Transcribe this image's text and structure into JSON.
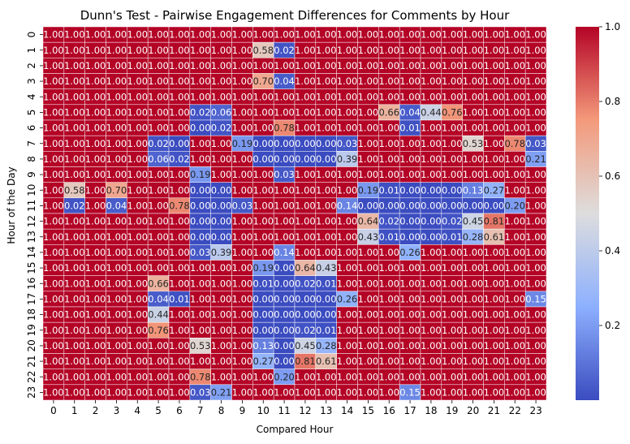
{
  "chart_data": {
    "type": "heatmap",
    "title": "Dunn's Test - Pairwise Engagement Differences for Comments by Hour",
    "xlabel": "Compared Hour",
    "ylabel": "Hour of the Day",
    "x_ticks": [
      "0",
      "1",
      "2",
      "3",
      "4",
      "5",
      "6",
      "7",
      "8",
      "9",
      "10",
      "11",
      "12",
      "13",
      "14",
      "15",
      "16",
      "17",
      "18",
      "19",
      "20",
      "21",
      "22",
      "23"
    ],
    "y_ticks": [
      "0",
      "1",
      "2",
      "3",
      "4",
      "5",
      "6",
      "7",
      "8",
      "9",
      "10",
      "11",
      "12",
      "13",
      "14",
      "15",
      "16",
      "17",
      "18",
      "19",
      "20",
      "21",
      "22",
      "23"
    ],
    "colorbar": {
      "ticks": [
        "0.2",
        "0.4",
        "0.6",
        "0.8",
        "1.0"
      ],
      "vmin": 0.0,
      "vmax": 1.0,
      "colormap": "coolwarm"
    },
    "values": [
      [
        1.0,
        1.0,
        1.0,
        1.0,
        1.0,
        1.0,
        1.0,
        1.0,
        1.0,
        1.0,
        1.0,
        1.0,
        1.0,
        1.0,
        1.0,
        1.0,
        1.0,
        1.0,
        1.0,
        1.0,
        1.0,
        1.0,
        1.0,
        1.0
      ],
      [
        1.0,
        1.0,
        1.0,
        1.0,
        1.0,
        1.0,
        1.0,
        1.0,
        1.0,
        1.0,
        0.58,
        0.02,
        1.0,
        1.0,
        1.0,
        1.0,
        1.0,
        1.0,
        1.0,
        1.0,
        1.0,
        1.0,
        1.0,
        1.0
      ],
      [
        1.0,
        1.0,
        1.0,
        1.0,
        1.0,
        1.0,
        1.0,
        1.0,
        1.0,
        1.0,
        1.0,
        1.0,
        1.0,
        1.0,
        1.0,
        1.0,
        1.0,
        1.0,
        1.0,
        1.0,
        1.0,
        1.0,
        1.0,
        1.0
      ],
      [
        1.0,
        1.0,
        1.0,
        1.0,
        1.0,
        1.0,
        1.0,
        1.0,
        1.0,
        1.0,
        0.7,
        0.04,
        1.0,
        1.0,
        1.0,
        1.0,
        1.0,
        1.0,
        1.0,
        1.0,
        1.0,
        1.0,
        1.0,
        1.0
      ],
      [
        1.0,
        1.0,
        1.0,
        1.0,
        1.0,
        1.0,
        1.0,
        1.0,
        1.0,
        1.0,
        1.0,
        1.0,
        1.0,
        1.0,
        1.0,
        1.0,
        1.0,
        1.0,
        1.0,
        1.0,
        1.0,
        1.0,
        1.0,
        1.0
      ],
      [
        1.0,
        1.0,
        1.0,
        1.0,
        1.0,
        1.0,
        1.0,
        0.02,
        0.06,
        1.0,
        1.0,
        1.0,
        1.0,
        1.0,
        1.0,
        1.0,
        0.66,
        0.04,
        0.44,
        0.76,
        1.0,
        1.0,
        1.0,
        1.0
      ],
      [
        1.0,
        1.0,
        1.0,
        1.0,
        1.0,
        1.0,
        1.0,
        0.0,
        0.02,
        1.0,
        1.0,
        0.78,
        1.0,
        1.0,
        1.0,
        1.0,
        1.0,
        0.01,
        1.0,
        1.0,
        1.0,
        1.0,
        1.0,
        1.0
      ],
      [
        1.0,
        1.0,
        1.0,
        1.0,
        1.0,
        0.02,
        0.0,
        1.0,
        1.0,
        0.19,
        0.0,
        0.0,
        0.0,
        0.0,
        0.03,
        1.0,
        1.0,
        1.0,
        1.0,
        1.0,
        0.53,
        1.0,
        0.78,
        0.03
      ],
      [
        1.0,
        1.0,
        1.0,
        1.0,
        1.0,
        0.06,
        0.02,
        1.0,
        1.0,
        1.0,
        0.0,
        0.0,
        0.0,
        0.0,
        0.39,
        1.0,
        1.0,
        1.0,
        1.0,
        1.0,
        1.0,
        1.0,
        1.0,
        0.21
      ],
      [
        1.0,
        1.0,
        1.0,
        1.0,
        1.0,
        1.0,
        1.0,
        0.19,
        1.0,
        1.0,
        1.0,
        0.03,
        1.0,
        1.0,
        1.0,
        1.0,
        1.0,
        1.0,
        1.0,
        1.0,
        1.0,
        1.0,
        1.0,
        1.0
      ],
      [
        1.0,
        0.58,
        1.0,
        0.7,
        1.0,
        1.0,
        1.0,
        0.0,
        0.0,
        1.0,
        1.0,
        1.0,
        1.0,
        1.0,
        1.0,
        0.19,
        0.01,
        0.0,
        0.0,
        0.0,
        0.13,
        0.27,
        1.0,
        1.0
      ],
      [
        1.0,
        0.02,
        1.0,
        0.04,
        1.0,
        1.0,
        0.78,
        0.0,
        0.0,
        0.03,
        1.0,
        1.0,
        1.0,
        1.0,
        0.14,
        0.0,
        0.0,
        0.0,
        0.0,
        0.0,
        0.0,
        0.0,
        0.2,
        1.0
      ],
      [
        1.0,
        1.0,
        1.0,
        1.0,
        1.0,
        1.0,
        1.0,
        0.0,
        0.0,
        1.0,
        1.0,
        1.0,
        1.0,
        1.0,
        1.0,
        0.64,
        0.02,
        0.0,
        0.0,
        0.02,
        0.45,
        0.81,
        1.0,
        1.0
      ],
      [
        1.0,
        1.0,
        1.0,
        1.0,
        1.0,
        1.0,
        1.0,
        0.0,
        0.0,
        1.0,
        1.0,
        1.0,
        1.0,
        1.0,
        1.0,
        0.43,
        0.01,
        0.0,
        0.0,
        0.01,
        0.28,
        0.61,
        1.0,
        1.0
      ],
      [
        1.0,
        1.0,
        1.0,
        1.0,
        1.0,
        1.0,
        1.0,
        0.03,
        0.39,
        1.0,
        1.0,
        0.14,
        1.0,
        1.0,
        1.0,
        1.0,
        1.0,
        0.26,
        1.0,
        1.0,
        1.0,
        1.0,
        1.0,
        1.0
      ],
      [
        1.0,
        1.0,
        1.0,
        1.0,
        1.0,
        1.0,
        1.0,
        1.0,
        1.0,
        1.0,
        0.19,
        0.0,
        0.64,
        0.43,
        1.0,
        1.0,
        1.0,
        1.0,
        1.0,
        1.0,
        1.0,
        1.0,
        1.0,
        1.0
      ],
      [
        1.0,
        1.0,
        1.0,
        1.0,
        1.0,
        0.66,
        1.0,
        1.0,
        1.0,
        1.0,
        0.01,
        0.0,
        0.02,
        0.01,
        1.0,
        1.0,
        1.0,
        1.0,
        1.0,
        1.0,
        1.0,
        1.0,
        1.0,
        1.0
      ],
      [
        1.0,
        1.0,
        1.0,
        1.0,
        1.0,
        0.04,
        0.01,
        1.0,
        1.0,
        1.0,
        0.0,
        0.0,
        0.0,
        0.0,
        0.26,
        1.0,
        1.0,
        1.0,
        1.0,
        1.0,
        1.0,
        1.0,
        1.0,
        0.15
      ],
      [
        1.0,
        1.0,
        1.0,
        1.0,
        1.0,
        0.44,
        1.0,
        1.0,
        1.0,
        1.0,
        0.0,
        0.0,
        0.0,
        0.0,
        1.0,
        1.0,
        1.0,
        1.0,
        1.0,
        1.0,
        1.0,
        1.0,
        1.0,
        1.0
      ],
      [
        1.0,
        1.0,
        1.0,
        1.0,
        1.0,
        0.76,
        1.0,
        1.0,
        1.0,
        1.0,
        0.0,
        0.0,
        0.02,
        0.01,
        1.0,
        1.0,
        1.0,
        1.0,
        1.0,
        1.0,
        1.0,
        1.0,
        1.0,
        1.0
      ],
      [
        1.0,
        1.0,
        1.0,
        1.0,
        1.0,
        1.0,
        1.0,
        0.53,
        1.0,
        1.0,
        0.13,
        0.0,
        0.45,
        0.28,
        1.0,
        1.0,
        1.0,
        1.0,
        1.0,
        1.0,
        1.0,
        1.0,
        1.0,
        1.0
      ],
      [
        1.0,
        1.0,
        1.0,
        1.0,
        1.0,
        1.0,
        1.0,
        1.0,
        1.0,
        1.0,
        0.27,
        0.0,
        0.81,
        0.61,
        1.0,
        1.0,
        1.0,
        1.0,
        1.0,
        1.0,
        1.0,
        1.0,
        1.0,
        1.0
      ],
      [
        1.0,
        1.0,
        1.0,
        1.0,
        1.0,
        1.0,
        1.0,
        0.78,
        1.0,
        1.0,
        1.0,
        0.2,
        1.0,
        1.0,
        1.0,
        1.0,
        1.0,
        1.0,
        1.0,
        1.0,
        1.0,
        1.0,
        1.0,
        1.0
      ],
      [
        1.0,
        1.0,
        1.0,
        1.0,
        1.0,
        1.0,
        1.0,
        0.03,
        0.21,
        1.0,
        1.0,
        1.0,
        1.0,
        1.0,
        1.0,
        1.0,
        1.0,
        0.15,
        1.0,
        1.0,
        1.0,
        1.0,
        1.0,
        1.0
      ]
    ]
  }
}
